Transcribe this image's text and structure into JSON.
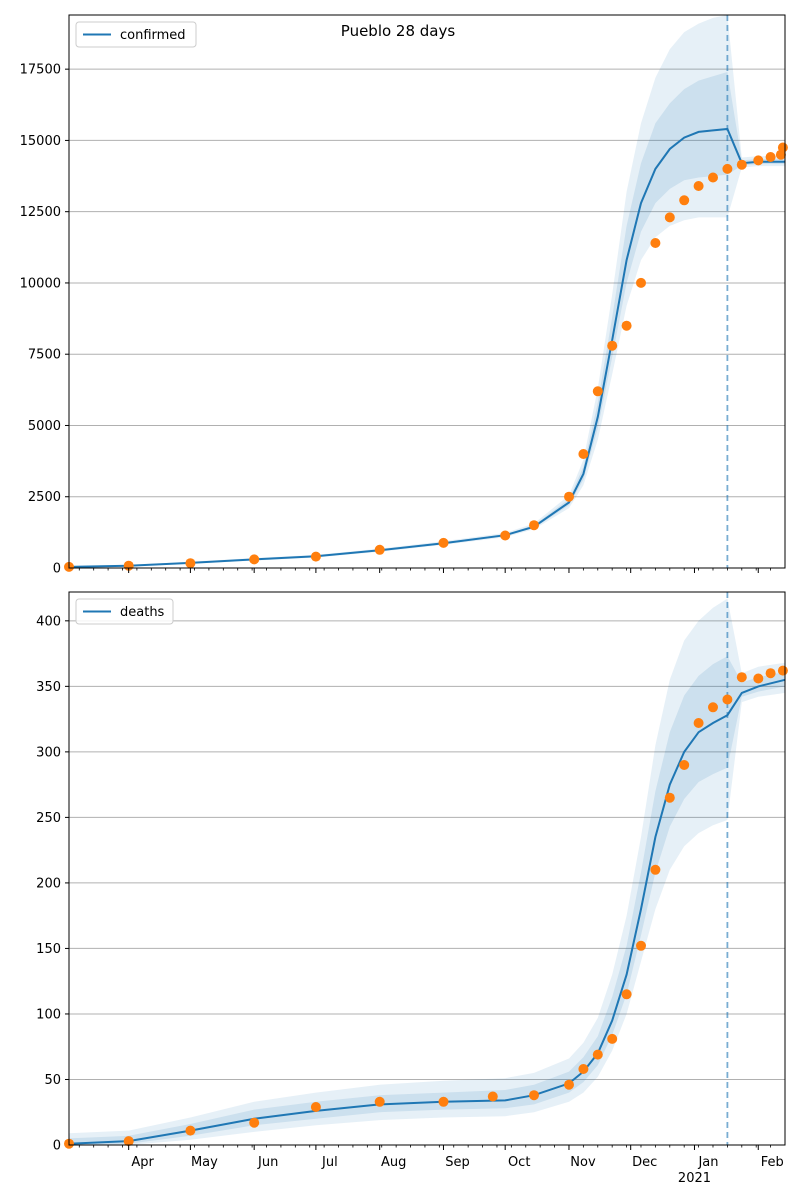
{
  "title": "Pueblo 28 days",
  "colors": {
    "model": "#1f77b4",
    "observed": "#ff7f0e",
    "grid": "#b0b0b0",
    "band": "#1f77b4"
  },
  "chart_data": [
    {
      "type": "line",
      "legend": "confirmed",
      "legend_location": "upper-left",
      "grid": "horizontal",
      "xlim": [
        "2020-03-03",
        "2021-02-14"
      ],
      "ylim": [
        0,
        19400
      ],
      "yticks": [
        0,
        2500,
        5000,
        7500,
        10000,
        12500,
        15000,
        17500
      ],
      "forecast_start": "2021-01-17",
      "model": {
        "x": [
          "2020-03-03",
          "2020-04-01",
          "2020-05-01",
          "2020-06-01",
          "2020-07-01",
          "2020-08-01",
          "2020-09-01",
          "2020-10-01",
          "2020-10-15",
          "2020-11-01",
          "2020-11-08",
          "2020-11-15",
          "2020-11-22",
          "2020-11-29",
          "2020-12-06",
          "2020-12-13",
          "2020-12-20",
          "2020-12-27",
          "2021-01-03",
          "2021-01-10",
          "2021-01-17",
          "2021-01-24",
          "2021-02-01",
          "2021-02-14"
        ],
        "y": [
          40,
          80,
          180,
          300,
          410,
          620,
          870,
          1150,
          1450,
          2300,
          3300,
          5300,
          8000,
          10800,
          12800,
          14000,
          14700,
          15100,
          15300,
          15350,
          15400,
          14200,
          14250,
          14250
        ],
        "bands": [
          {
            "lower": [
              20,
              60,
              150,
              260,
              370,
              570,
              810,
              1080,
              1360,
              2100,
              2900,
              4500,
              6800,
              9200,
              10800,
              11600,
              12000,
              12200,
              12300,
              12300,
              12300,
              14050,
              14100,
              14100
            ],
            "upper": [
              70,
              110,
              220,
              350,
              460,
              680,
              940,
              1230,
              1560,
              2550,
              3800,
              6300,
              9600,
              13200,
              15600,
              17200,
              18200,
              18800,
              19100,
              19300,
              19400,
              14400,
              14450,
              14450
            ]
          },
          {
            "lower": [
              30,
              70,
              165,
              280,
              390,
              595,
              840,
              1115,
              1405,
              2200,
              3100,
              4900,
              7400,
              10000,
              11800,
              12800,
              13300,
              13600,
              13700,
              13750,
              13800,
              14120,
              14170,
              14170
            ],
            "upper": [
              55,
              95,
              200,
              325,
              435,
              650,
              905,
              1190,
              1505,
              2420,
              3550,
              5800,
              8800,
              12000,
              14200,
              15600,
              16300,
              16800,
              17100,
              17250,
              17400,
              14300,
              14350,
              14350
            ]
          }
        ]
      },
      "observed": {
        "x": [
          "2020-03-03",
          "2020-04-01",
          "2020-05-01",
          "2020-06-01",
          "2020-07-01",
          "2020-08-01",
          "2020-09-01",
          "2020-10-01",
          "2020-10-15",
          "2020-11-01",
          "2020-11-08",
          "2020-11-15",
          "2020-11-22",
          "2020-11-29",
          "2020-12-06",
          "2020-12-13",
          "2020-12-20",
          "2020-12-27",
          "2021-01-03",
          "2021-01-10",
          "2021-01-17",
          "2021-01-24",
          "2021-02-01",
          "2021-02-07",
          "2021-02-12",
          "2021-02-13"
        ],
        "y": [
          40,
          80,
          170,
          300,
          400,
          640,
          880,
          1140,
          1500,
          2500,
          4000,
          6200,
          7800,
          8500,
          10000,
          11400,
          12300,
          12900,
          13400,
          13700,
          14000,
          14150,
          14300,
          14420,
          14500,
          14750
        ]
      }
    },
    {
      "type": "line",
      "legend": "deaths",
      "legend_location": "upper-left",
      "grid": "horizontal",
      "xlim": [
        "2020-03-03",
        "2021-02-14"
      ],
      "ylim": [
        0,
        422
      ],
      "yticks": [
        0,
        50,
        100,
        150,
        200,
        250,
        300,
        350,
        400
      ],
      "xtick_labels": [
        "Apr",
        "May",
        "Jun",
        "Jul",
        "Aug",
        "Sep",
        "Oct",
        "Nov",
        "Dec",
        "Jan",
        "Feb"
      ],
      "xtick_year": "2021",
      "forecast_start": "2021-01-17",
      "model": {
        "x": [
          "2020-03-03",
          "2020-04-01",
          "2020-05-01",
          "2020-06-01",
          "2020-07-01",
          "2020-08-01",
          "2020-09-01",
          "2020-10-01",
          "2020-10-15",
          "2020-11-01",
          "2020-11-08",
          "2020-11-15",
          "2020-11-22",
          "2020-11-29",
          "2020-12-06",
          "2020-12-13",
          "2020-12-20",
          "2020-12-27",
          "2021-01-03",
          "2021-01-10",
          "2021-01-17",
          "2021-01-24",
          "2021-02-01",
          "2021-02-14"
        ],
        "y": [
          1,
          3,
          11,
          20,
          26,
          31,
          33,
          34,
          38,
          47,
          56,
          70,
          95,
          130,
          180,
          235,
          275,
          300,
          315,
          322,
          328,
          345,
          350,
          355
        ],
        "bands": [
          {
            "lower": [
              0,
              0,
              4,
              10,
              15,
              19,
              21,
              22,
              25,
              33,
              40,
              52,
              72,
              100,
              140,
              180,
              210,
              228,
              238,
              244,
              248,
              338,
              342,
              345
            ],
            "upper": [
              9,
              11,
              21,
              33,
              40,
              46,
              49,
              51,
              55,
              66,
              78,
              97,
              130,
              175,
              235,
              305,
              355,
              385,
              400,
              410,
              417,
              360,
              365,
              368
            ]
          },
          {
            "lower": [
              0,
              1,
              7,
              15,
              20,
              25,
              27,
              28,
              31,
              40,
              48,
              61,
              84,
              115,
              160,
              208,
              243,
              264,
              277,
              283,
              288,
              342,
              346,
              350
            ],
            "upper": [
              5,
              7,
              16,
              27,
              33,
              38,
              40,
              42,
              46,
              56,
              67,
              83,
              113,
              152,
              208,
              270,
              315,
              343,
              358,
              367,
              373,
              353,
              357,
              361
            ]
          }
        ]
      },
      "observed": {
        "x": [
          "2020-03-03",
          "2020-04-01",
          "2020-05-01",
          "2020-06-01",
          "2020-07-01",
          "2020-08-01",
          "2020-09-01",
          "2020-09-25",
          "2020-10-15",
          "2020-11-01",
          "2020-11-08",
          "2020-11-15",
          "2020-11-22",
          "2020-11-29",
          "2020-12-06",
          "2020-12-13",
          "2020-12-20",
          "2020-12-27",
          "2021-01-03",
          "2021-01-10",
          "2021-01-17",
          "2021-01-24",
          "2021-02-01",
          "2021-02-07",
          "2021-02-13"
        ],
        "y": [
          1,
          3,
          11,
          17,
          29,
          33,
          33,
          37,
          38,
          46,
          58,
          69,
          81,
          115,
          152,
          210,
          265,
          290,
          322,
          334,
          340,
          357,
          356,
          360,
          362
        ]
      }
    }
  ]
}
